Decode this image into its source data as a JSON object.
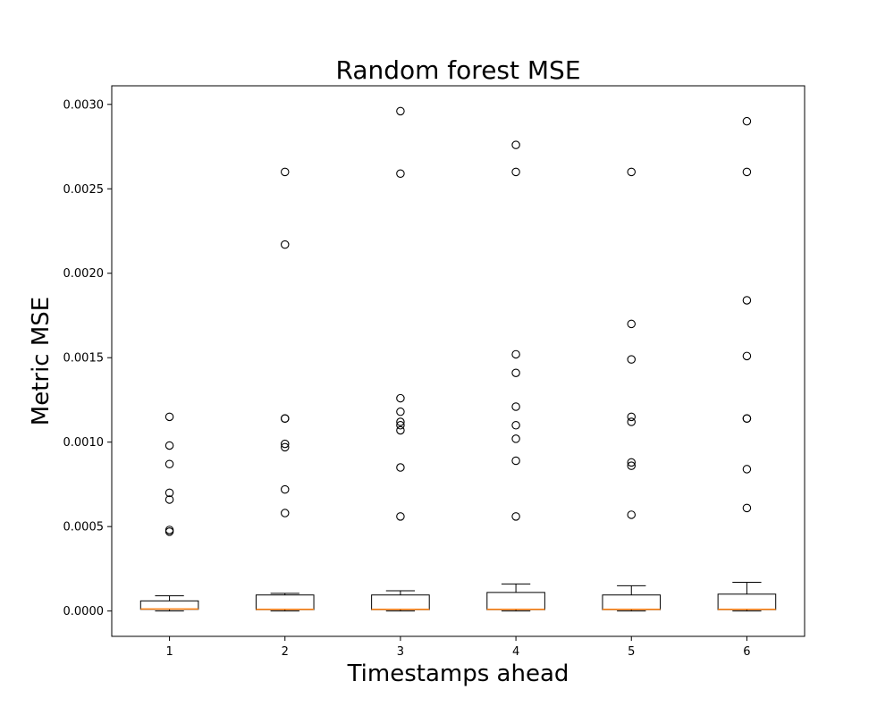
{
  "chart_data": {
    "type": "box",
    "title": "Random forest MSE",
    "xlabel": "Timestamps ahead",
    "ylabel": "Metric MSE",
    "ylim": [
      -0.00015,
      0.00311
    ],
    "yticks": [
      0.0,
      0.0005,
      0.001,
      0.0015,
      0.002,
      0.0025,
      0.003
    ],
    "ytick_labels": [
      "0.0000",
      "0.0005",
      "0.0010",
      "0.0015",
      "0.0020",
      "0.0025",
      "0.0030"
    ],
    "categories": [
      "1",
      "2",
      "3",
      "4",
      "5",
      "6"
    ],
    "grid": false,
    "colors": {
      "box": "#000000",
      "median": "#ff7f0e",
      "flier": "#000000"
    },
    "boxes": [
      {
        "category": "1",
        "whisker_low": 0.0,
        "q1": 1e-05,
        "median": 1.2e-05,
        "q3": 6e-05,
        "whisker_high": 9e-05,
        "fliers": [
          0.00115,
          0.00098,
          0.00087,
          0.0007,
          0.00066,
          0.00048,
          0.00047
        ]
      },
      {
        "category": "2",
        "whisker_low": 0.0,
        "q1": 8e-06,
        "median": 1e-05,
        "q3": 9.5e-05,
        "whisker_high": 0.000105,
        "fliers": [
          0.0026,
          0.00217,
          0.00114,
          0.00114,
          0.00099,
          0.00097,
          0.00072,
          0.00058
        ]
      },
      {
        "category": "3",
        "whisker_low": 0.0,
        "q1": 8e-06,
        "median": 1e-05,
        "q3": 9.5e-05,
        "whisker_high": 0.00012,
        "fliers": [
          0.00296,
          0.00259,
          0.00126,
          0.00118,
          0.00112,
          0.0011,
          0.00107,
          0.00085,
          0.00056
        ]
      },
      {
        "category": "4",
        "whisker_low": 0.0,
        "q1": 8e-06,
        "median": 1e-05,
        "q3": 0.00011,
        "whisker_high": 0.00016,
        "fliers": [
          0.00276,
          0.0026,
          0.00152,
          0.00141,
          0.00121,
          0.0011,
          0.00102,
          0.00089,
          0.00056
        ]
      },
      {
        "category": "5",
        "whisker_low": 0.0,
        "q1": 8e-06,
        "median": 1e-05,
        "q3": 9.5e-05,
        "whisker_high": 0.00015,
        "fliers": [
          0.0026,
          0.0017,
          0.00149,
          0.00115,
          0.00112,
          0.00088,
          0.00086,
          0.00057
        ]
      },
      {
        "category": "6",
        "whisker_low": 0.0,
        "q1": 8e-06,
        "median": 1e-05,
        "q3": 0.0001,
        "whisker_high": 0.00017,
        "fliers": [
          0.0029,
          0.0026,
          0.00184,
          0.00151,
          0.00114,
          0.00114,
          0.00084,
          0.00061
        ]
      }
    ]
  }
}
